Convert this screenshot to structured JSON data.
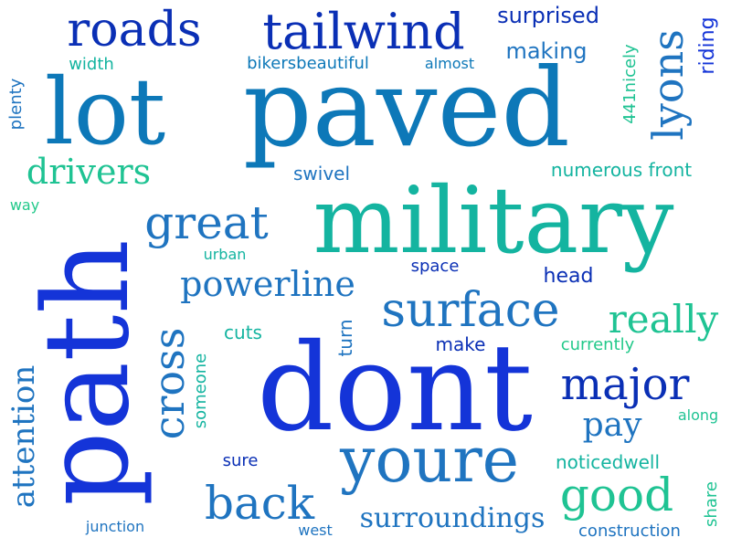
{
  "colors": {
    "royal_blue": "#1434d8",
    "deep_blue": "#0a2fb5",
    "steel_blue": "#1f74c0",
    "ocean_blue": "#0d78b8",
    "teal": "#14b4a0",
    "sea_green": "#1fc393",
    "green": "#22c98a"
  },
  "words": [
    {
      "id": "paved",
      "text": "paved"
    },
    {
      "id": "military",
      "text": "military"
    },
    {
      "id": "dont",
      "text": "dont"
    },
    {
      "id": "path",
      "text": "path"
    },
    {
      "id": "lot",
      "text": "lot"
    },
    {
      "id": "youre",
      "text": "youre"
    },
    {
      "id": "roads",
      "text": "roads"
    },
    {
      "id": "tailwind",
      "text": "tailwind"
    },
    {
      "id": "great",
      "text": "great"
    },
    {
      "id": "surface",
      "text": "surface"
    },
    {
      "id": "powerline",
      "text": "powerline"
    },
    {
      "id": "drivers",
      "text": "drivers"
    },
    {
      "id": "lyons",
      "text": "lyons"
    },
    {
      "id": "major",
      "text": "major"
    },
    {
      "id": "cross",
      "text": "cross"
    },
    {
      "id": "back",
      "text": "back"
    },
    {
      "id": "good",
      "text": "good"
    },
    {
      "id": "really",
      "text": "really"
    },
    {
      "id": "pay",
      "text": "pay"
    },
    {
      "id": "attention",
      "text": "attention"
    },
    {
      "id": "surroundings",
      "text": "surroundings"
    },
    {
      "id": "surprised",
      "text": "surprised"
    },
    {
      "id": "making",
      "text": "making"
    },
    {
      "id": "riding",
      "text": "riding"
    },
    {
      "id": "nicely",
      "text": "441nicely"
    },
    {
      "id": "plenty",
      "text": "plenty"
    },
    {
      "id": "width",
      "text": "width"
    },
    {
      "id": "bikersbeautiful",
      "text": "bikersbeautiful"
    },
    {
      "id": "almost",
      "text": "almost"
    },
    {
      "id": "numerous",
      "text": "numerous front"
    },
    {
      "id": "swivel",
      "text": "swivel"
    },
    {
      "id": "way",
      "text": "way"
    },
    {
      "id": "urban",
      "text": "urban"
    },
    {
      "id": "space",
      "text": "space"
    },
    {
      "id": "head",
      "text": "head"
    },
    {
      "id": "cuts",
      "text": "cuts"
    },
    {
      "id": "turn",
      "text": "turn"
    },
    {
      "id": "make",
      "text": "make"
    },
    {
      "id": "currently",
      "text": "currently"
    },
    {
      "id": "someone",
      "text": "someone"
    },
    {
      "id": "along",
      "text": "along"
    },
    {
      "id": "sure",
      "text": "sure"
    },
    {
      "id": "noticedwell",
      "text": "noticedwell"
    },
    {
      "id": "share",
      "text": "share"
    },
    {
      "id": "junction",
      "text": "junction"
    },
    {
      "id": "west",
      "text": "west"
    },
    {
      "id": "construction",
      "text": "construction"
    }
  ]
}
